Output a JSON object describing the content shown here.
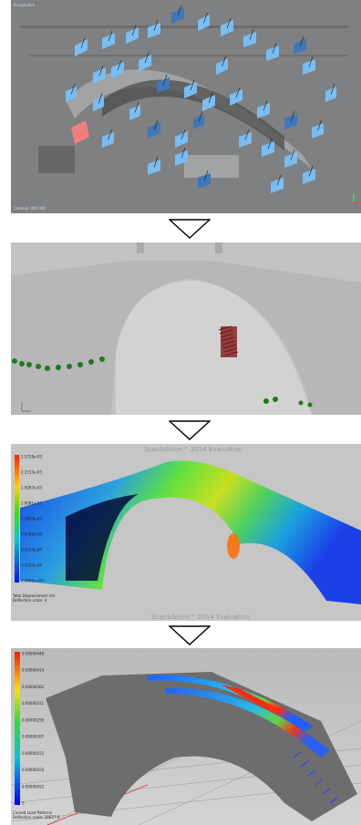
{
  "panels": {
    "p1": {
      "corner_label": "Perspective",
      "footer_label": "Camera: 000 000",
      "colors": {
        "bg": "#7f8081",
        "cam": "#79bdf2",
        "cam_dark": "#3f78b8",
        "cam_sel": "#f07e7e"
      }
    },
    "p2": {
      "colors": {
        "bg": "#c3c3c3",
        "red": "#7a1010",
        "green": "#1e7a1e"
      }
    },
    "p3": {
      "watermark_top": "Scan&Solve™ 2014 Evaluation",
      "watermark_bottom": "Scan&Solve™ 2014 Evaluation",
      "legend_ticks": [
        "2.5728e-03",
        "2.2513e-03",
        "1.9297e-03",
        "1.6081e-03",
        "1.2865e-03",
        "9.6486e-04",
        "6.4324e-04",
        "3.2162e-04",
        "0.0000e+00"
      ],
      "legend_caption": [
        "Total Displacement (m)",
        "Deflection scale: 3"
      ]
    },
    "p4": {
      "legend_ticks": [
        "0.00000449",
        "0.00000414",
        "0.00000362",
        "0.00000311",
        "0.00000259",
        "0.00000207",
        "0.00000155",
        "0.00000103",
        "0.00000052",
        "0"
      ],
      "legend_caption": [
        "Curved Load Patterns",
        "Deflection scale: 20627.9"
      ]
    }
  }
}
